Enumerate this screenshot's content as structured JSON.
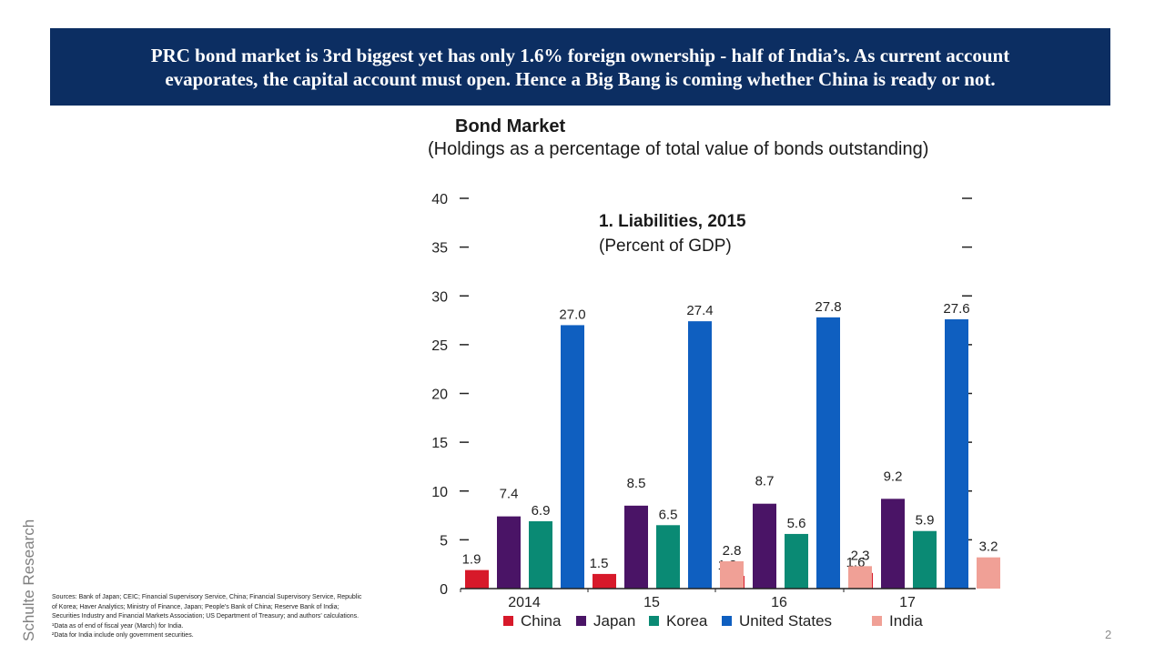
{
  "header": {
    "line1": "PRC bond market is 3rd biggest yet has only 1.6% foreign ownership - half of India’s. As current account",
    "line2": "evaporates, the capital account must open. Hence a Big Bang is coming whether China is ready or not."
  },
  "side_label": "Schulte Research",
  "page_number": "2",
  "sources": [
    "Sources: Bank of Japan; CEIC; Financial Supervisory Service, China; Financial Supervisory Service, Republic",
    "of Korea; Haver Analytics; Ministry of Finance, Japan; People’s Bank of China; Reserve Bank of India;",
    "Securities Industry and Financial Markets Association; US Department of Treasury; and authors’ calculations.",
    "¹Data as of end of fiscal year (March) for India.",
    "²Data for India include only government securities."
  ],
  "chart_data": {
    "type": "bar",
    "title": "Bond Market",
    "subtitle": "(Holdings as a percentage of total value of bonds outstanding)",
    "panel_title": "1. Liabilities, 2015",
    "panel_subtitle": "(Percent of GDP)",
    "categories": [
      "2014",
      "15",
      "16",
      "17"
    ],
    "ylim": [
      0,
      40
    ],
    "yticks": [
      "0",
      "5",
      "10",
      "15",
      "20",
      "25",
      "30",
      "35",
      "40"
    ],
    "legend_position": "bottom",
    "grid": false,
    "series": [
      {
        "name": "China",
        "color": "#d7192a",
        "values": [
          1.9,
          1.5,
          1.3,
          1.6
        ],
        "labels": [
          "1.9",
          "1.5",
          "1.3",
          "1.6"
        ]
      },
      {
        "name": "Japan",
        "color": "#4a1466",
        "values": [
          7.4,
          8.5,
          8.7,
          9.2
        ],
        "labels": [
          "7.4",
          "8.5",
          "8.7",
          "9.2"
        ]
      },
      {
        "name": "Korea",
        "color": "#0a8a74",
        "values": [
          6.9,
          6.5,
          5.6,
          5.9
        ],
        "labels": [
          "6.9",
          "6.5",
          "5.6",
          "5.9"
        ]
      },
      {
        "name": "United States",
        "color": "#0f5fc0",
        "values": [
          27.0,
          27.4,
          27.8,
          27.6
        ],
        "labels": [
          "27.0",
          "27.4",
          "27.8",
          "27.6"
        ]
      },
      {
        "name": "India",
        "color": "#f0a096",
        "values": [
          null,
          2.8,
          2.3,
          3.2
        ],
        "labels": [
          "",
          "2.8",
          "2.3",
          "3.2"
        ]
      }
    ]
  }
}
